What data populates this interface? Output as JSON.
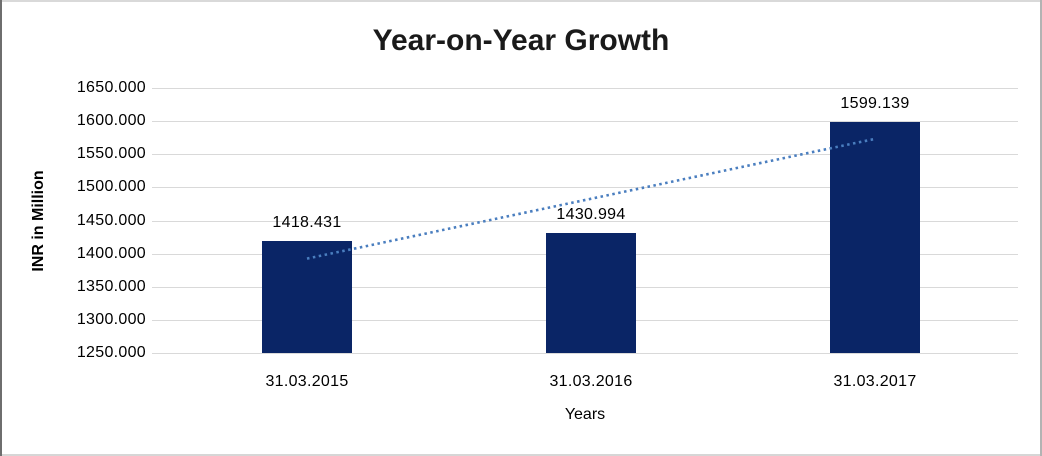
{
  "chart": {
    "title": "Year-on-Year Growth",
    "ylabel": "INR in Million",
    "xlabel": "Years"
  },
  "chart_data": {
    "type": "bar",
    "title": "Year-on-Year Growth",
    "categories": [
      "31.03.2015",
      "31.03.2016",
      "31.03.2017"
    ],
    "values": [
      1418.431,
      1430.994,
      1599.139
    ],
    "data_labels": [
      "1418.431",
      "1430.994",
      "1599.139"
    ],
    "xlabel": "Years",
    "ylabel": "INR in Million",
    "ylim": [
      1250,
      1650
    ],
    "ytick_step": 50,
    "ytick_labels": [
      "1650.000",
      "1600.000",
      "1550.000",
      "1500.000",
      "1450.000",
      "1400.000",
      "1350.000",
      "1300.000",
      "1250.000"
    ],
    "grid": true,
    "legend": "none",
    "bar_color": "#0a2566",
    "gridline_color": "#d9d9d9",
    "trendline": {
      "type": "linear",
      "style": "dotted",
      "color": "#4a7ebf"
    }
  }
}
